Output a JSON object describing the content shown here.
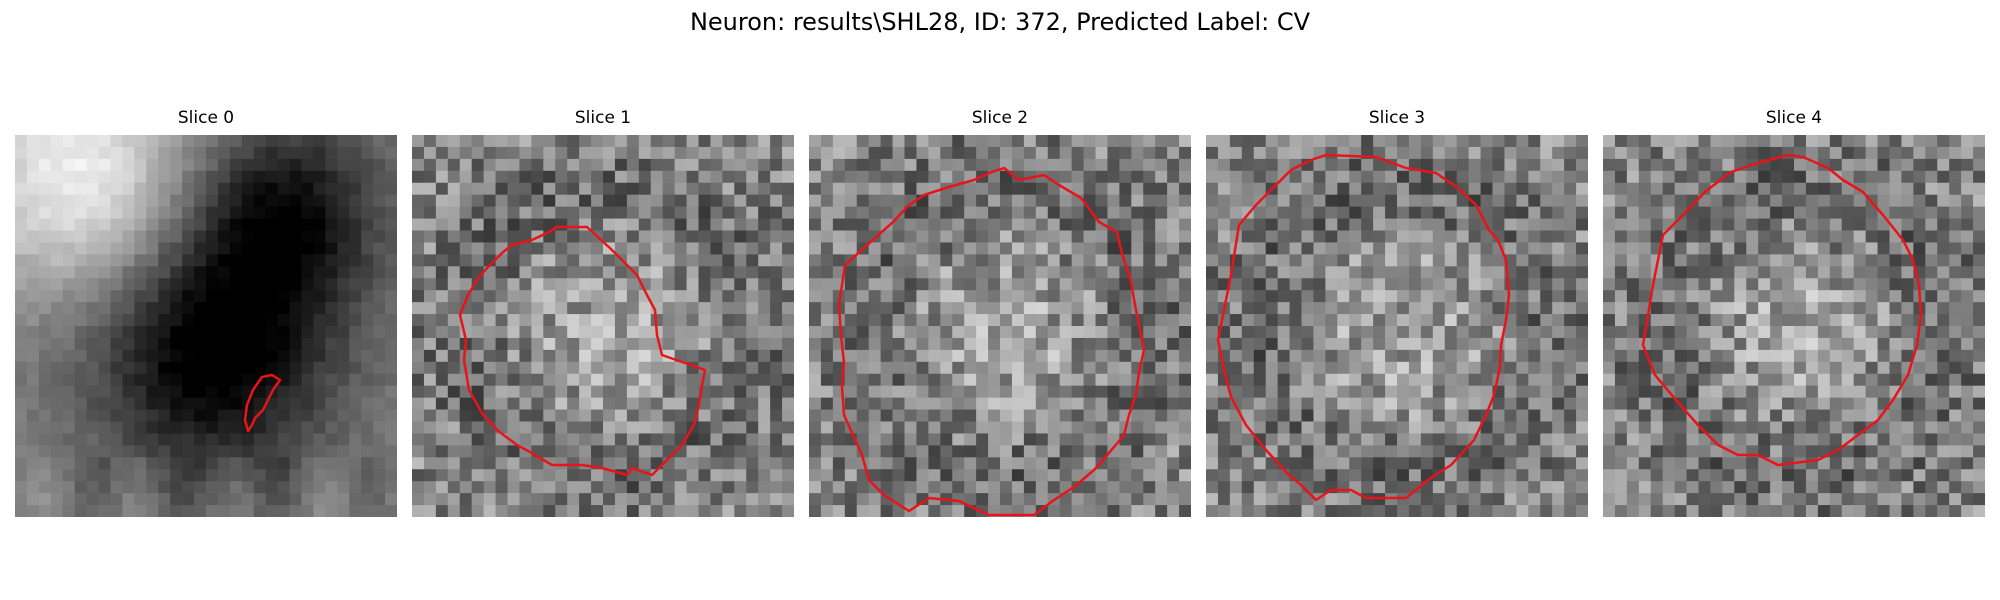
{
  "figure": {
    "title": "Neuron: results\\SHL28, ID: 372, Predicted Label: CV"
  },
  "panels": [
    {
      "title": "Slice 0",
      "style": "smooth",
      "contour_color": "#e8141a"
    },
    {
      "title": "Slice 1",
      "style": "noisy-ring",
      "contour_color": "#e8141a"
    },
    {
      "title": "Slice 2",
      "style": "noisy-ring",
      "contour_color": "#e8141a"
    },
    {
      "title": "Slice 3",
      "style": "noisy-ring",
      "contour_color": "#e8141a"
    },
    {
      "title": "Slice 4",
      "style": "noisy-ring",
      "contour_color": "#e8141a"
    }
  ]
}
